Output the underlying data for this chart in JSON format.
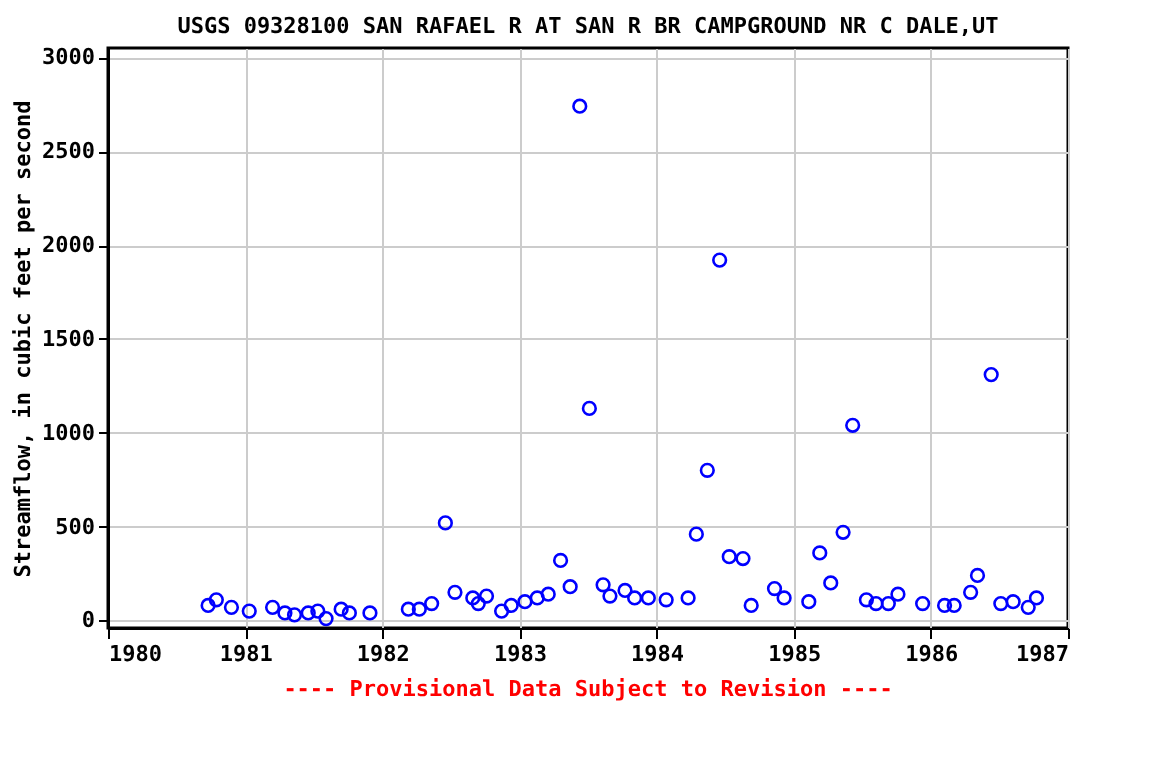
{
  "chart_data": {
    "type": "scatter",
    "title": "USGS 09328100 SAN RAFAEL R AT SAN R BR CAMPGROUND NR C DALE,UT",
    "ylabel": "Streamflow, in cubic feet per second",
    "annotations": [
      "---- Provisional Data Subject to Revision ----"
    ],
    "x": [
      1980.73,
      1980.79,
      1980.9,
      1981.03,
      1981.2,
      1981.29,
      1981.36,
      1981.46,
      1981.53,
      1981.59,
      1981.7,
      1981.76,
      1981.91,
      1982.19,
      1982.27,
      1982.36,
      1982.46,
      1982.53,
      1982.66,
      1982.7,
      1982.76,
      1982.87,
      1982.94,
      1983.04,
      1983.13,
      1983.21,
      1983.3,
      1983.37,
      1983.44,
      1983.51,
      1983.61,
      1983.66,
      1983.77,
      1983.84,
      1983.94,
      1984.07,
      1984.23,
      1984.29,
      1984.37,
      1984.46,
      1984.53,
      1984.63,
      1984.69,
      1984.86,
      1984.93,
      1985.11,
      1985.19,
      1985.27,
      1985.36,
      1985.43,
      1985.53,
      1985.6,
      1985.69,
      1985.76,
      1985.94,
      1986.1,
      1986.17,
      1986.29,
      1986.34,
      1986.44,
      1986.51,
      1986.6,
      1986.71,
      1986.77
    ],
    "series": [
      {
        "color": "#0000ff",
        "values": [
          80,
          110,
          70,
          50,
          70,
          40,
          30,
          40,
          50,
          10,
          60,
          40,
          40,
          60,
          60,
          90,
          520,
          150,
          120,
          90,
          130,
          50,
          80,
          100,
          120,
          140,
          320,
          180,
          2740,
          1130,
          190,
          130,
          160,
          120,
          120,
          110,
          120,
          460,
          800,
          1920,
          340,
          330,
          80,
          170,
          120,
          100,
          360,
          200,
          470,
          1040,
          110,
          90,
          90,
          140,
          90,
          80,
          80,
          150,
          240,
          1310,
          90,
          100,
          70,
          120
        ]
      }
    ],
    "xlim": [
      1980,
      1987
    ],
    "xticks": [
      1980,
      1981,
      1982,
      1983,
      1984,
      1985,
      1986,
      1987
    ],
    "ylim": [
      -40,
      3050
    ],
    "yticks": [
      0,
      500,
      1000,
      1500,
      2000,
      2500,
      3000
    ],
    "grid": true,
    "marker": "circle"
  }
}
